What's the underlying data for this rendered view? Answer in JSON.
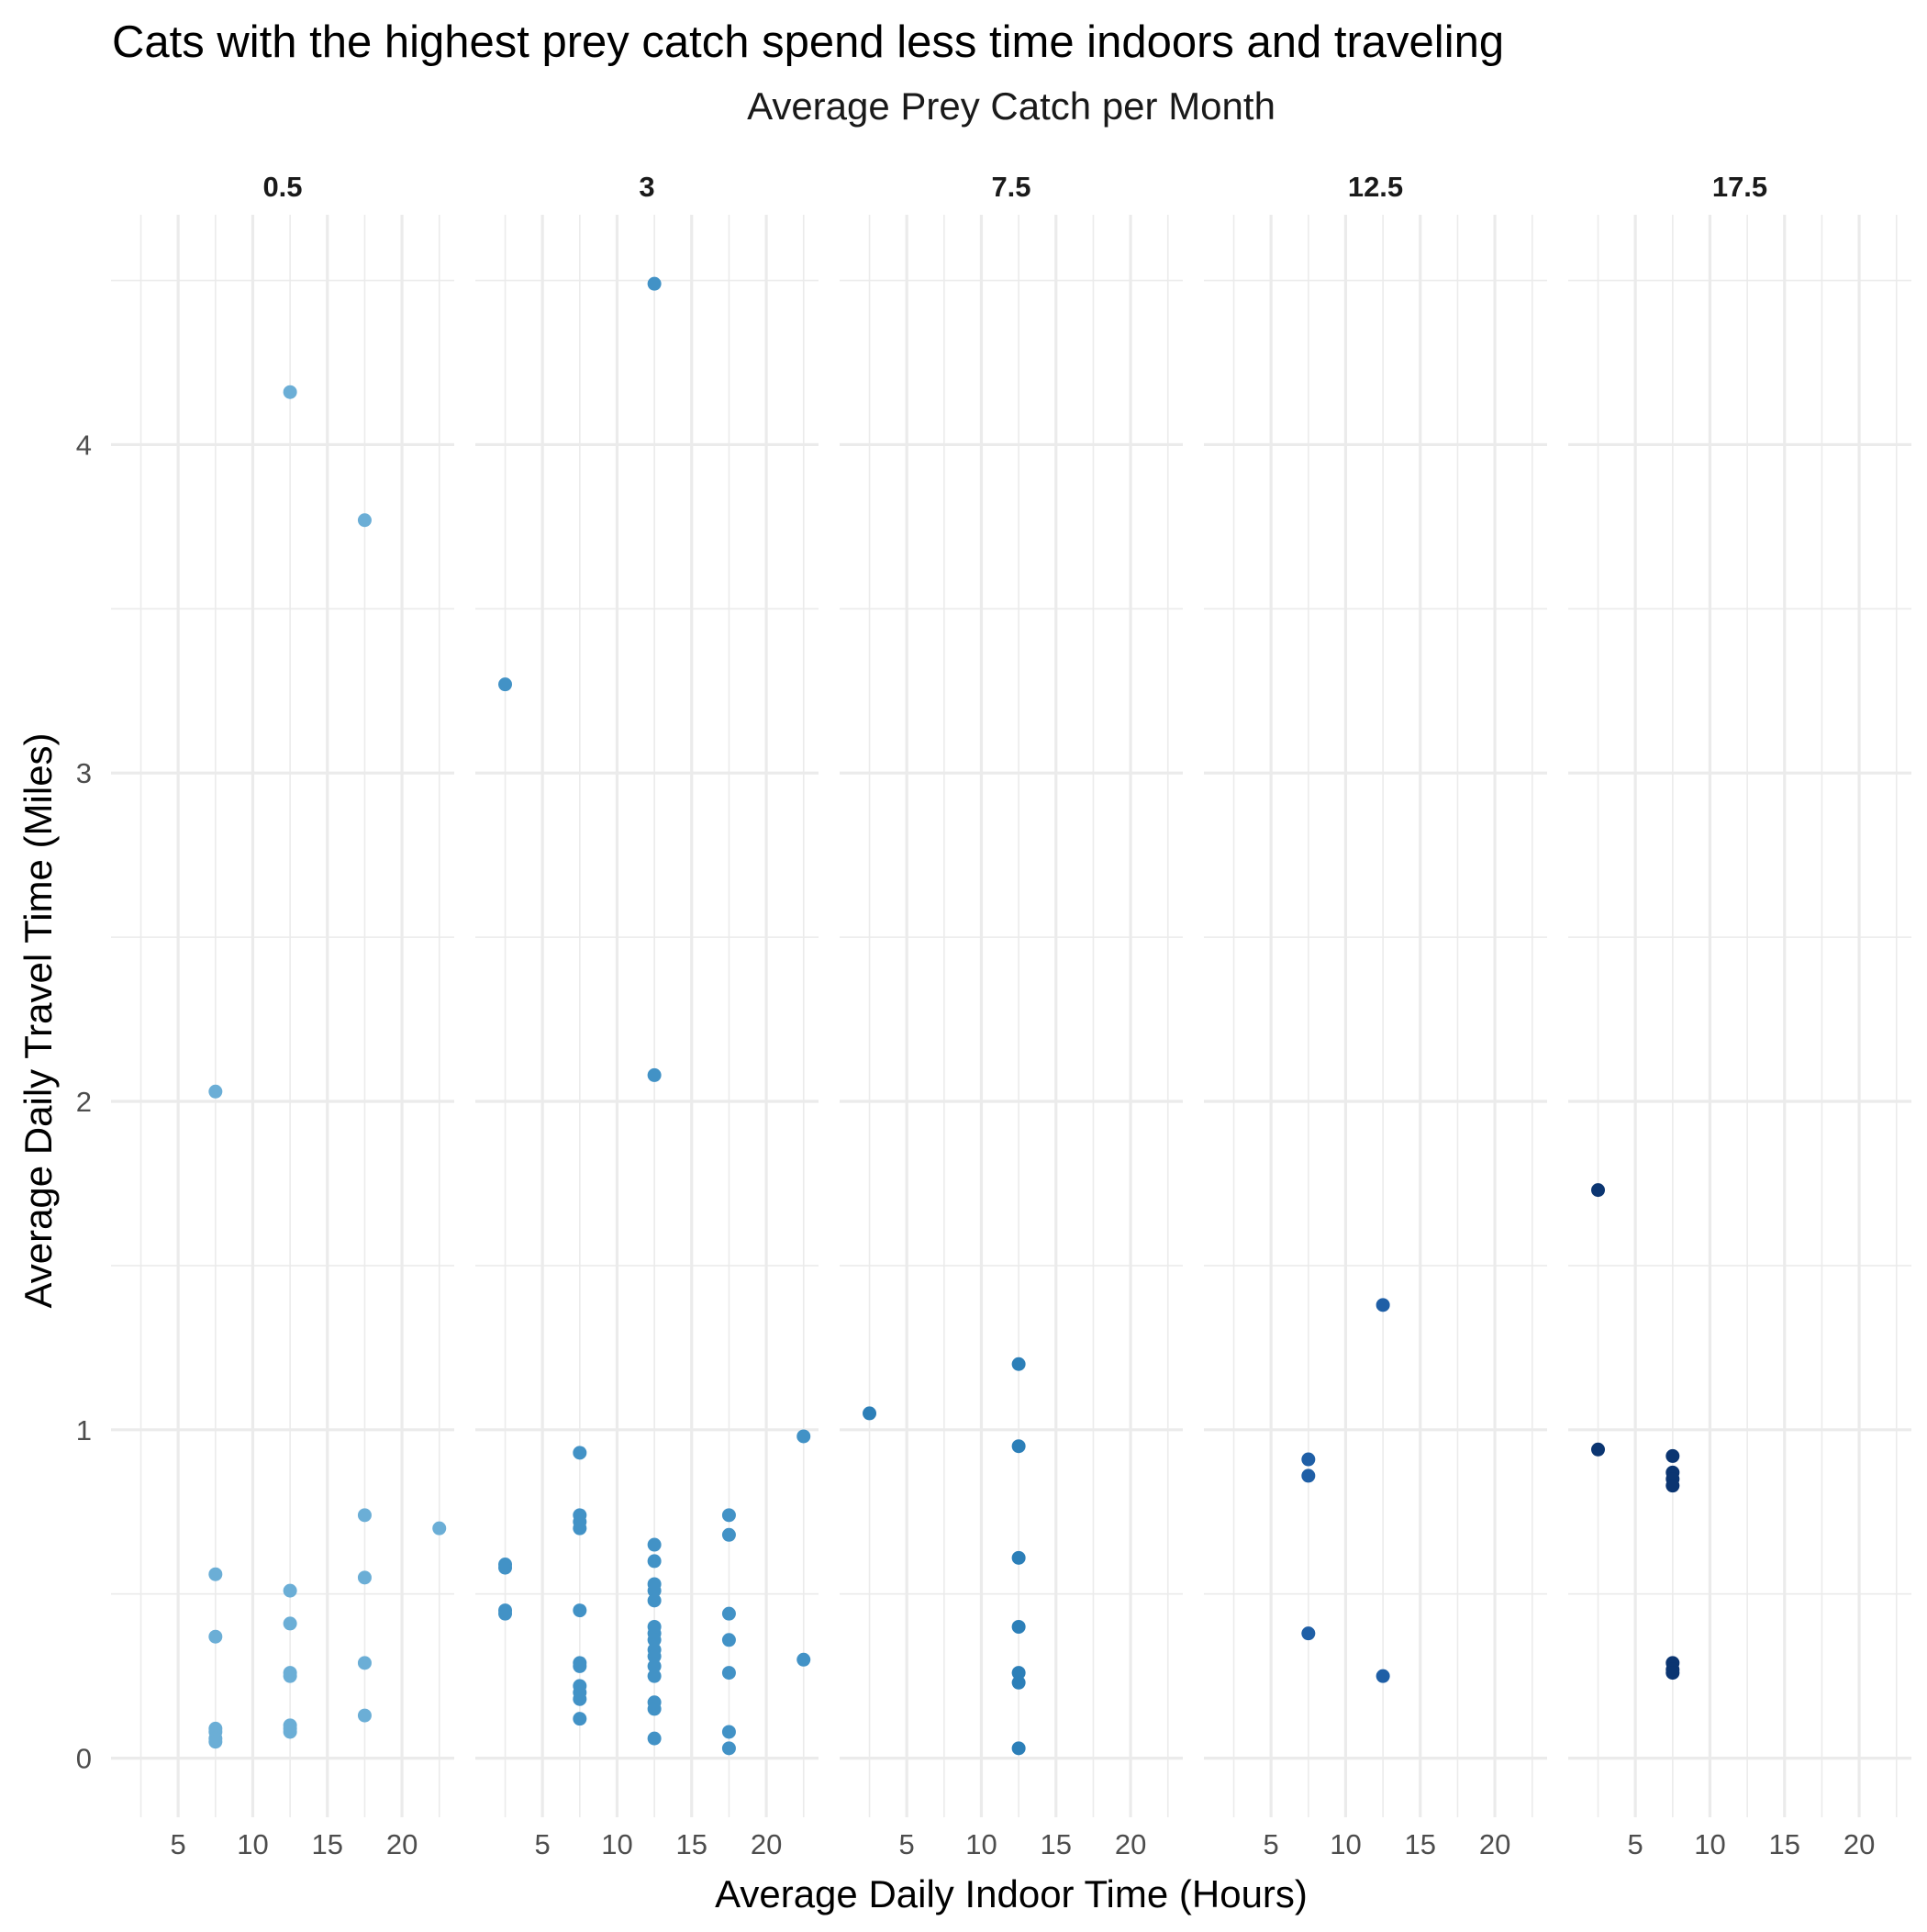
{
  "chart_data": {
    "type": "scatter",
    "title": "Cats with the highest prey catch spend less time indoors and traveling",
    "facet_label": "Average Prey Catch per Month",
    "xlabel": "Average Daily Indoor Time (Hours)",
    "ylabel": "Average Daily Travel Time (Miles)",
    "xlim": [
      0.5,
      23.5
    ],
    "ylim": [
      -0.18,
      4.7
    ],
    "xticks": [
      5,
      10,
      15,
      20
    ],
    "yticks": [
      0,
      1,
      2,
      3,
      4
    ],
    "grid": true,
    "legend": "none",
    "facets": [
      {
        "label": "0.5",
        "color": "#6baed6",
        "points": [
          [
            7.5,
            2.03
          ],
          [
            7.5,
            0.56
          ],
          [
            7.5,
            0.37
          ],
          [
            7.5,
            0.09
          ],
          [
            7.5,
            0.08
          ],
          [
            7.5,
            0.06
          ],
          [
            7.5,
            0.05
          ],
          [
            12.5,
            4.16
          ],
          [
            12.5,
            0.51
          ],
          [
            12.5,
            0.41
          ],
          [
            12.5,
            0.26
          ],
          [
            12.5,
            0.25
          ],
          [
            12.5,
            0.1
          ],
          [
            12.5,
            0.09
          ],
          [
            12.5,
            0.08
          ],
          [
            17.5,
            3.77
          ],
          [
            17.5,
            0.74
          ],
          [
            17.5,
            0.55
          ],
          [
            17.5,
            0.29
          ],
          [
            17.5,
            0.13
          ],
          [
            22.5,
            0.7
          ]
        ]
      },
      {
        "label": "3",
        "color": "#4292c6",
        "points": [
          [
            2.5,
            3.27
          ],
          [
            2.5,
            0.59
          ],
          [
            2.5,
            0.58
          ],
          [
            2.5,
            0.45
          ],
          [
            2.5,
            0.44
          ],
          [
            7.5,
            0.93
          ],
          [
            7.5,
            0.74
          ],
          [
            7.5,
            0.72
          ],
          [
            7.5,
            0.7
          ],
          [
            7.5,
            0.45
          ],
          [
            7.5,
            0.29
          ],
          [
            7.5,
            0.28
          ],
          [
            7.5,
            0.22
          ],
          [
            7.5,
            0.2
          ],
          [
            7.5,
            0.18
          ],
          [
            7.5,
            0.12
          ],
          [
            12.5,
            4.49
          ],
          [
            12.5,
            2.08
          ],
          [
            12.5,
            0.65
          ],
          [
            12.5,
            0.6
          ],
          [
            12.5,
            0.53
          ],
          [
            12.5,
            0.51
          ],
          [
            12.5,
            0.48
          ],
          [
            12.5,
            0.4
          ],
          [
            12.5,
            0.38
          ],
          [
            12.5,
            0.36
          ],
          [
            12.5,
            0.33
          ],
          [
            12.5,
            0.31
          ],
          [
            12.5,
            0.28
          ],
          [
            12.5,
            0.25
          ],
          [
            12.5,
            0.17
          ],
          [
            12.5,
            0.15
          ],
          [
            12.5,
            0.06
          ],
          [
            17.5,
            0.74
          ],
          [
            17.5,
            0.68
          ],
          [
            17.5,
            0.44
          ],
          [
            17.5,
            0.36
          ],
          [
            17.5,
            0.26
          ],
          [
            17.5,
            0.08
          ],
          [
            17.5,
            0.03
          ],
          [
            22.5,
            0.98
          ],
          [
            22.5,
            0.3
          ]
        ]
      },
      {
        "label": "7.5",
        "color": "#2c7fb8",
        "points": [
          [
            2.5,
            1.05
          ],
          [
            12.5,
            1.2
          ],
          [
            12.5,
            0.95
          ],
          [
            12.5,
            0.61
          ],
          [
            12.5,
            0.4
          ],
          [
            12.5,
            0.26
          ],
          [
            12.5,
            0.23
          ],
          [
            12.5,
            0.03
          ]
        ]
      },
      {
        "label": "12.5",
        "color": "#1f5fa6",
        "points": [
          [
            7.5,
            0.91
          ],
          [
            7.5,
            0.86
          ],
          [
            7.5,
            0.38
          ],
          [
            12.5,
            1.38
          ],
          [
            12.5,
            0.25
          ]
        ]
      },
      {
        "label": "17.5",
        "color": "#0b3571",
        "points": [
          [
            2.5,
            1.73
          ],
          [
            2.5,
            0.94
          ],
          [
            7.5,
            0.92
          ],
          [
            7.5,
            0.87
          ],
          [
            7.5,
            0.85
          ],
          [
            7.5,
            0.83
          ],
          [
            7.5,
            0.29
          ],
          [
            7.5,
            0.27
          ],
          [
            7.5,
            0.26
          ]
        ]
      }
    ]
  }
}
